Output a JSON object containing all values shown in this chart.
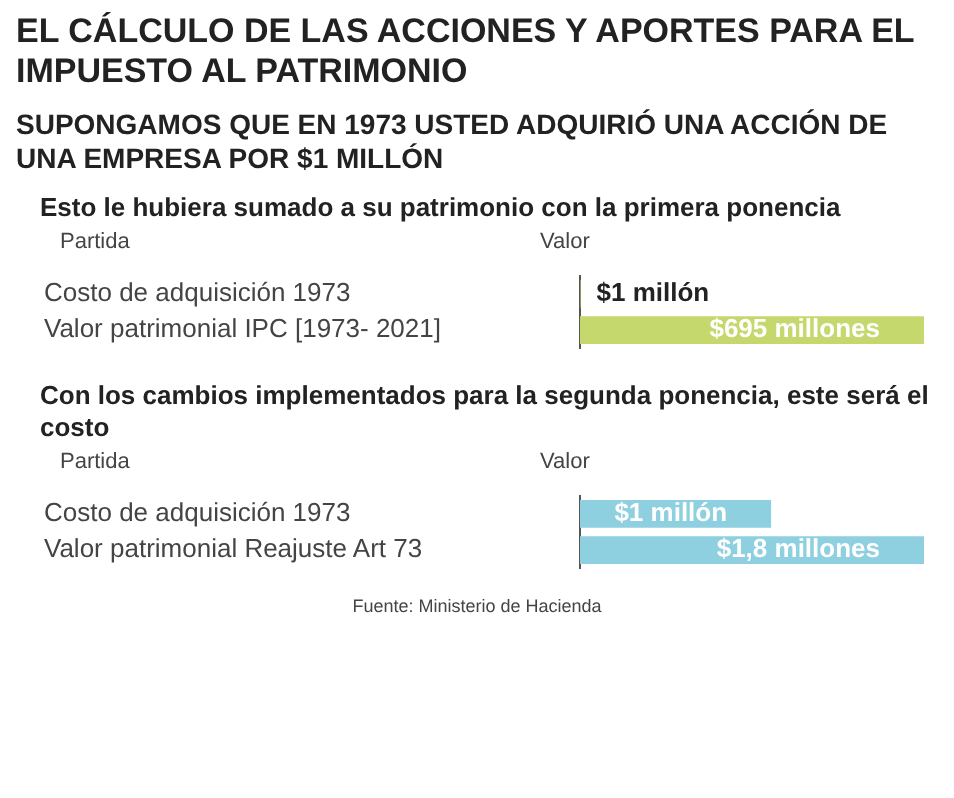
{
  "chart_data": [
    {
      "type": "other",
      "title": "EL CÁLCULO DE LAS ACCIONES Y APORTES PARA EL IMPUESTO AL PATRIMONIO",
      "subtitle": "SUPONGAMOS QUE EN 1973 USTED ADQUIRIÓ UNA ACCIÓN DE UNA EMPRESA POR $1 MILLÓN"
    },
    {
      "type": "bar",
      "orientation": "horizontal",
      "title": "Esto le hubiera sumado a su patrimonio con la primera ponencia",
      "ylabel": "Partida",
      "xlabel": "Valor",
      "categories": [
        "Costo de adquisición 1973",
        "Valor patrimonial IPC [1973- 2021]"
      ],
      "values": [
        1,
        695
      ],
      "color": "#c5d86d",
      "value_labels": [
        "$1 millón",
        "$695 millones"
      ],
      "tick_labels": "y",
      "legend": false
    },
    {
      "type": "bar",
      "orientation": "horizontal",
      "title": "Con los cambios implementados para la segunda ponencia, este será el costo",
      "ylabel": "Partida",
      "xlabel": "Valor",
      "categories": [
        "Costo de adquisición 1973",
        "Valor patrimonial Reajuste Art 73"
      ],
      "values": [
        1,
        1.8
      ],
      "color": "#8ecfe0",
      "value_labels": [
        "$1 millón",
        "$1,8 millones"
      ],
      "tick_labels": "y",
      "legend": false,
      "annotations": [
        "Fuente: Ministerio de Hacienda"
      ]
    }
  ]
}
